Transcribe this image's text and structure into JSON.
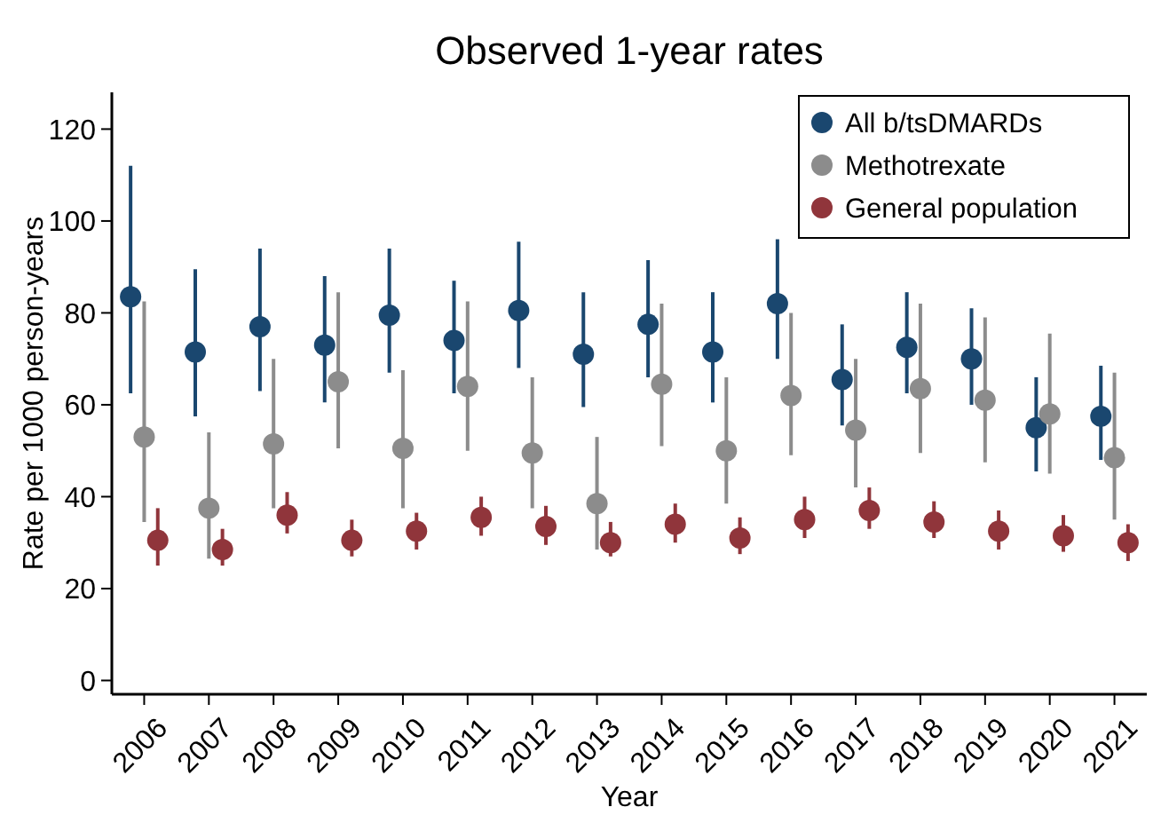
{
  "chart_data": {
    "type": "scatter",
    "title": "Observed 1-year rates",
    "xlabel": "Year",
    "ylabel": "Rate per 1000 person-years",
    "categories": [
      "2006",
      "2007",
      "2008",
      "2009",
      "2010",
      "2011",
      "2012",
      "2013",
      "2014",
      "2015",
      "2016",
      "2017",
      "2018",
      "2019",
      "2020",
      "2021"
    ],
    "ylim": [
      -3,
      128
    ],
    "yticks": [
      0,
      20,
      40,
      60,
      80,
      100,
      120
    ],
    "grid": false,
    "legend": "top right",
    "marker": "circle",
    "series": [
      {
        "name": "All b/tsDMARDs",
        "color": "#1a476f",
        "values": [
          83.5,
          71.5,
          77,
          73,
          79.5,
          74,
          80.5,
          71,
          77.5,
          71.5,
          82,
          65.5,
          72.5,
          70,
          55,
          57.5
        ],
        "errors": [
          [
            62.5,
            112
          ],
          [
            57.5,
            89.5
          ],
          [
            63,
            94
          ],
          [
            60.5,
            88
          ],
          [
            67,
            94
          ],
          [
            62.5,
            87
          ],
          [
            68,
            95.5
          ],
          [
            59.5,
            84.5
          ],
          [
            66,
            91.5
          ],
          [
            60.5,
            84.5
          ],
          [
            70,
            96
          ],
          [
            55.5,
            77.5
          ],
          [
            62.5,
            84.5
          ],
          [
            60,
            81
          ],
          [
            45.5,
            66
          ],
          [
            48,
            68.5
          ]
        ]
      },
      {
        "name": "Methotrexate",
        "color": "#8c8c8c",
        "values": [
          53,
          37.5,
          51.5,
          65,
          50.5,
          64,
          49.5,
          38.5,
          64.5,
          50,
          62,
          54.5,
          63.5,
          61,
          58,
          48.5
        ],
        "errors": [
          [
            34.5,
            82.5
          ],
          [
            26.5,
            54
          ],
          [
            37.5,
            70
          ],
          [
            50.5,
            84.5
          ],
          [
            37.5,
            67.5
          ],
          [
            50,
            82.5
          ],
          [
            37.5,
            66
          ],
          [
            28.5,
            53
          ],
          [
            51,
            82
          ],
          [
            38.5,
            66
          ],
          [
            49,
            80
          ],
          [
            42,
            70
          ],
          [
            49.5,
            82
          ],
          [
            47.5,
            79
          ],
          [
            45,
            75.5
          ],
          [
            35,
            67
          ]
        ]
      },
      {
        "name": "General population",
        "color": "#90353b",
        "values": [
          30.5,
          28.5,
          36,
          30.5,
          32.5,
          35.5,
          33.5,
          30,
          34,
          31,
          35,
          37,
          34.5,
          32.5,
          31.5,
          30
        ],
        "errors": [
          [
            25,
            37.5
          ],
          [
            25,
            33
          ],
          [
            32,
            41
          ],
          [
            27,
            35
          ],
          [
            28.5,
            36.5
          ],
          [
            31.5,
            40
          ],
          [
            29.5,
            38
          ],
          [
            27,
            34.5
          ],
          [
            30,
            38.5
          ],
          [
            27.5,
            35.5
          ],
          [
            31,
            40
          ],
          [
            33,
            42
          ],
          [
            31,
            39
          ],
          [
            28.5,
            37
          ],
          [
            28,
            36
          ],
          [
            26,
            34
          ]
        ]
      }
    ]
  }
}
